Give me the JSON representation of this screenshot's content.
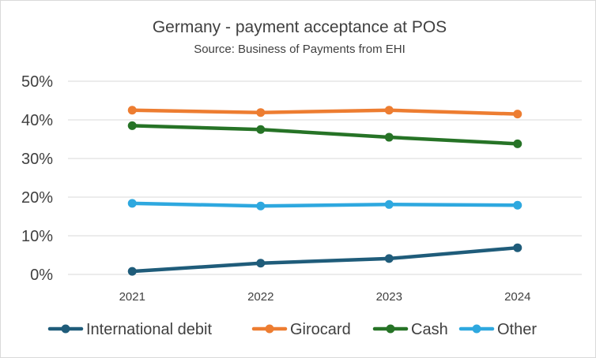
{
  "chart_data": {
    "type": "line",
    "title": "Germany - payment acceptance at POS",
    "subtitle": "Source: Business of Payments from EHI",
    "xlabel": "",
    "ylabel": "",
    "categories": [
      "2021",
      "2022",
      "2023",
      "2024"
    ],
    "ylim": [
      0,
      50
    ],
    "y_ticks": [
      "0%",
      "10%",
      "20%",
      "30%",
      "40%",
      "50%"
    ],
    "y_tick_values": [
      0,
      10,
      20,
      30,
      40,
      50
    ],
    "grid": true,
    "legend_position": "bottom",
    "series": [
      {
        "name": "International debit",
        "color": "#1f5c7a",
        "values": [
          0.8,
          2.9,
          4.1,
          6.9
        ]
      },
      {
        "name": "Girocard",
        "color": "#ed7d31",
        "values": [
          42.5,
          41.9,
          42.5,
          41.5
        ]
      },
      {
        "name": "Cash",
        "color": "#267326",
        "values": [
          38.5,
          37.5,
          35.5,
          33.8
        ]
      },
      {
        "name": "Other",
        "color": "#2ea8df",
        "values": [
          18.4,
          17.7,
          18.1,
          17.9
        ]
      }
    ]
  }
}
